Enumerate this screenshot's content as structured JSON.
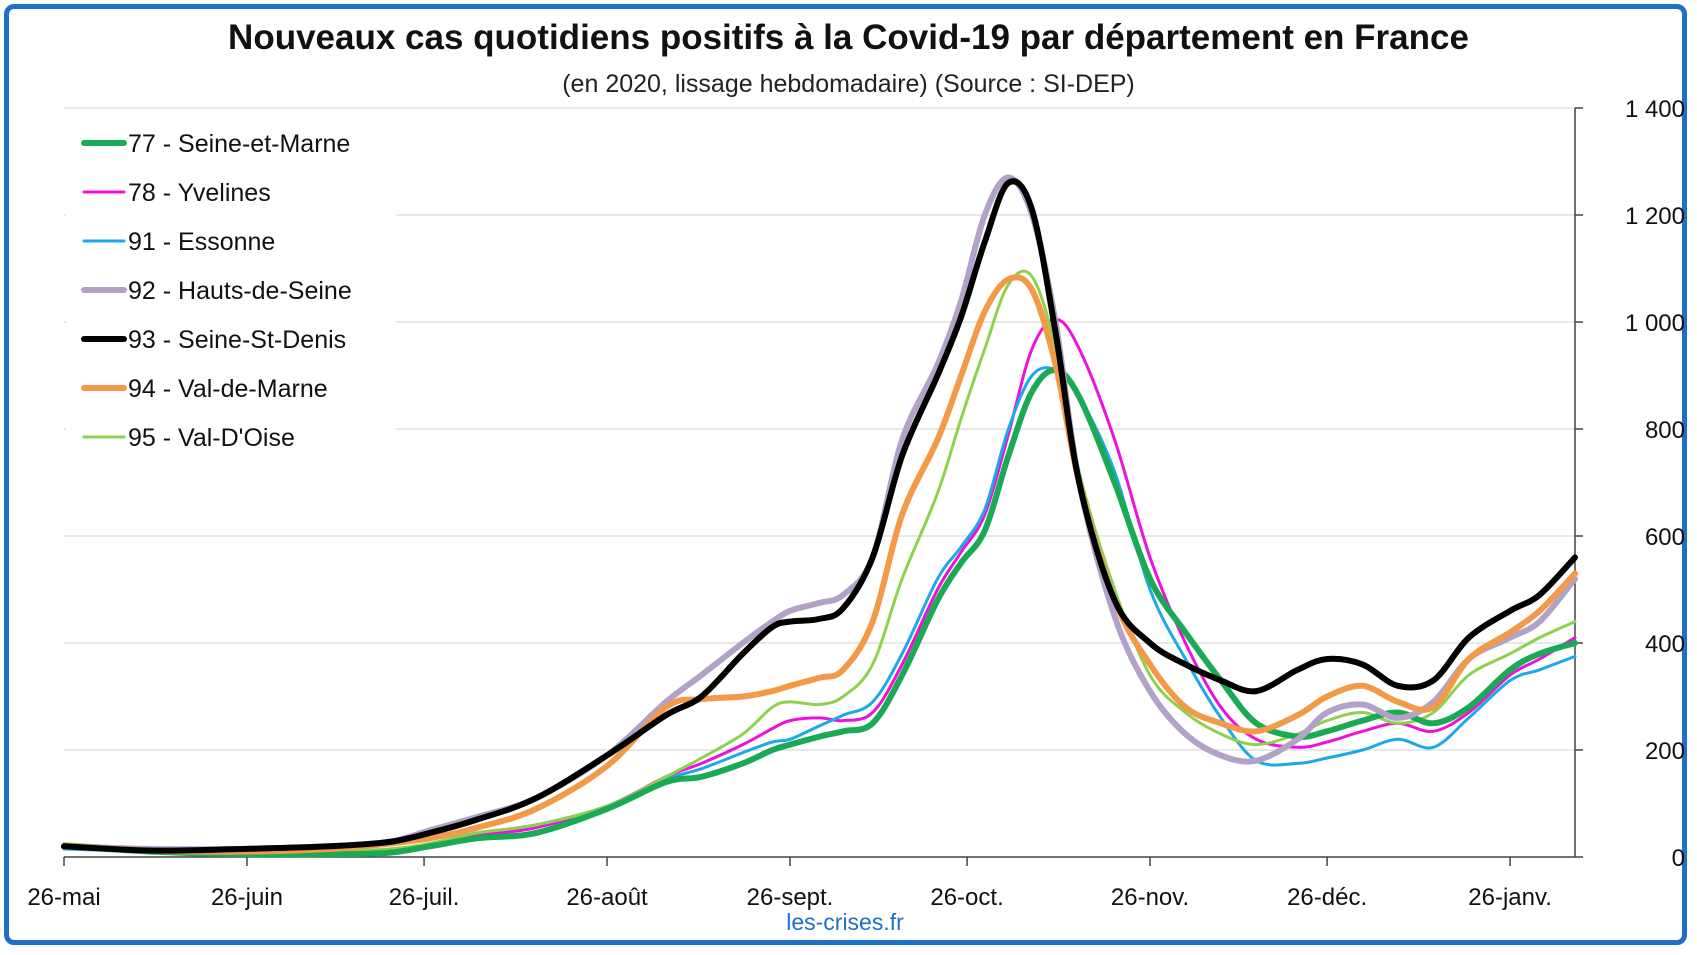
{
  "title": "Nouveaux cas quotidiens positifs à la Covid-19 par département en France",
  "subtitle": "(en 2020, lissage hebdomadaire) (Source : SI-DEP)",
  "source_label": "les-crises.fr",
  "chart_data": {
    "type": "line",
    "title": "Nouveaux cas quotidiens positifs à la Covid-19 par département en France",
    "subtitle": "(en 2020, lissage hebdomadaire) (Source : SI-DEP)",
    "x_tick_labels": [
      "26-mai",
      "26-juin",
      "26-juil.",
      "26-août",
      "26-sept.",
      "26-oct.",
      "26-nov.",
      "26-déc.",
      "26-janv."
    ],
    "x_tick_days": [
      0,
      31,
      61,
      92,
      123,
      153,
      184,
      214,
      245
    ],
    "x_range_days": [
      0,
      256
    ],
    "ylim": [
      0,
      1400
    ],
    "y_ticks": [
      0,
      200,
      400,
      600,
      800,
      1000,
      1200,
      1400
    ],
    "y_tick_labels": [
      "0",
      "200",
      "400",
      "600",
      "800",
      "1 000",
      "1 200",
      "1 400"
    ],
    "y_axis_side": "right",
    "grid": true,
    "legend_position": "top-left",
    "series": [
      {
        "name": "77 - Seine-et-Marne",
        "color": "#1aaa55",
        "width": 6,
        "x": [
          0,
          15,
          30,
          45,
          55,
          62,
          70,
          80,
          92,
          102,
          108,
          115,
          120,
          123,
          128,
          132,
          137,
          142,
          148,
          152,
          156,
          160,
          164,
          168,
          172,
          178,
          184,
          190,
          196,
          202,
          209,
          214,
          220,
          226,
          232,
          238,
          245,
          250,
          256
        ],
        "y": [
          20,
          10,
          5,
          5,
          8,
          20,
          35,
          45,
          90,
          140,
          150,
          175,
          200,
          210,
          225,
          235,
          250,
          340,
          480,
          550,
          610,
          750,
          870,
          910,
          860,
          700,
          520,
          420,
          330,
          250,
          225,
          235,
          255,
          270,
          250,
          280,
          350,
          380,
          400
        ]
      },
      {
        "name": "78 - Yvelines",
        "color": "#ee11dd",
        "width": 3,
        "x": [
          0,
          15,
          30,
          45,
          55,
          62,
          70,
          80,
          92,
          102,
          108,
          115,
          120,
          123,
          128,
          132,
          137,
          142,
          148,
          152,
          156,
          160,
          164,
          168,
          172,
          178,
          184,
          190,
          196,
          202,
          209,
          214,
          220,
          226,
          232,
          238,
          245,
          250,
          256
        ],
        "y": [
          20,
          12,
          8,
          8,
          12,
          25,
          40,
          55,
          95,
          150,
          175,
          210,
          240,
          255,
          260,
          255,
          270,
          360,
          500,
          570,
          640,
          790,
          950,
          1005,
          950,
          780,
          560,
          400,
          280,
          220,
          205,
          215,
          235,
          250,
          235,
          270,
          340,
          370,
          410
        ]
      },
      {
        "name": "91 - Essonne",
        "color": "#1ca9e6",
        "width": 3,
        "x": [
          0,
          15,
          30,
          45,
          55,
          62,
          70,
          80,
          92,
          102,
          108,
          115,
          120,
          123,
          128,
          132,
          137,
          142,
          148,
          152,
          156,
          160,
          164,
          168,
          172,
          178,
          184,
          190,
          196,
          202,
          209,
          214,
          220,
          226,
          232,
          238,
          245,
          250,
          256
        ],
        "y": [
          15,
          10,
          8,
          8,
          12,
          25,
          45,
          60,
          95,
          145,
          165,
          195,
          215,
          220,
          245,
          265,
          290,
          380,
          520,
          580,
          650,
          800,
          900,
          910,
          860,
          720,
          500,
          370,
          260,
          180,
          175,
          185,
          200,
          220,
          205,
          260,
          330,
          350,
          375
        ]
      },
      {
        "name": "92 - Hauts-de-Seine",
        "color": "#b1a2c8",
        "width": 6,
        "x": [
          0,
          15,
          30,
          45,
          55,
          62,
          70,
          80,
          92,
          102,
          108,
          115,
          120,
          123,
          128,
          132,
          137,
          142,
          148,
          152,
          156,
          160,
          164,
          168,
          172,
          178,
          184,
          190,
          196,
          202,
          209,
          214,
          220,
          226,
          232,
          238,
          245,
          250,
          256
        ],
        "y": [
          20,
          15,
          15,
          20,
          28,
          50,
          75,
          110,
          190,
          290,
          340,
          400,
          440,
          460,
          475,
          490,
          560,
          780,
          920,
          1040,
          1200,
          1270,
          1200,
          1000,
          700,
          450,
          310,
          230,
          190,
          180,
          220,
          270,
          285,
          260,
          290,
          370,
          410,
          440,
          520
        ]
      },
      {
        "name": "93 - Seine-St-Denis",
        "color": "#000000",
        "width": 6,
        "x": [
          0,
          15,
          30,
          45,
          55,
          62,
          70,
          80,
          92,
          102,
          108,
          115,
          120,
          123,
          128,
          132,
          137,
          142,
          148,
          152,
          156,
          160,
          164,
          168,
          172,
          178,
          184,
          190,
          196,
          202,
          209,
          214,
          220,
          226,
          232,
          238,
          245,
          250,
          256
        ],
        "y": [
          20,
          12,
          15,
          20,
          28,
          45,
          70,
          110,
          190,
          265,
          300,
          380,
          430,
          440,
          445,
          465,
          560,
          750,
          900,
          1010,
          1150,
          1260,
          1210,
          980,
          700,
          480,
          400,
          360,
          330,
          310,
          350,
          370,
          360,
          320,
          330,
          410,
          460,
          490,
          560
        ]
      },
      {
        "name": "94 - Val-de-Marne",
        "color": "#f39a48",
        "width": 6,
        "x": [
          0,
          15,
          30,
          45,
          55,
          62,
          70,
          80,
          92,
          102,
          108,
          115,
          120,
          123,
          128,
          132,
          137,
          142,
          148,
          152,
          156,
          160,
          164,
          168,
          172,
          178,
          184,
          190,
          196,
          202,
          209,
          214,
          220,
          226,
          232,
          238,
          245,
          250,
          256
        ],
        "y": [
          20,
          12,
          10,
          15,
          25,
          35,
          55,
          90,
          170,
          280,
          295,
          300,
          310,
          320,
          335,
          350,
          440,
          640,
          780,
          900,
          1020,
          1080,
          1060,
          920,
          700,
          480,
          360,
          280,
          250,
          235,
          265,
          300,
          320,
          290,
          280,
          370,
          420,
          460,
          530
        ]
      },
      {
        "name": "95 - Val-D'Oise",
        "color": "#8fd14f",
        "width": 3,
        "x": [
          0,
          15,
          30,
          45,
          55,
          62,
          70,
          80,
          92,
          102,
          108,
          115,
          120,
          123,
          128,
          132,
          137,
          142,
          148,
          152,
          156,
          160,
          164,
          168,
          172,
          178,
          184,
          190,
          196,
          202,
          209,
          214,
          220,
          226,
          232,
          238,
          245,
          250,
          256
        ],
        "y": [
          25,
          15,
          10,
          10,
          15,
          25,
          45,
          60,
          95,
          150,
          185,
          230,
          280,
          290,
          285,
          300,
          360,
          520,
          680,
          820,
          950,
          1070,
          1085,
          950,
          720,
          500,
          340,
          270,
          230,
          210,
          230,
          255,
          270,
          250,
          270,
          340,
          380,
          410,
          440
        ]
      }
    ]
  }
}
